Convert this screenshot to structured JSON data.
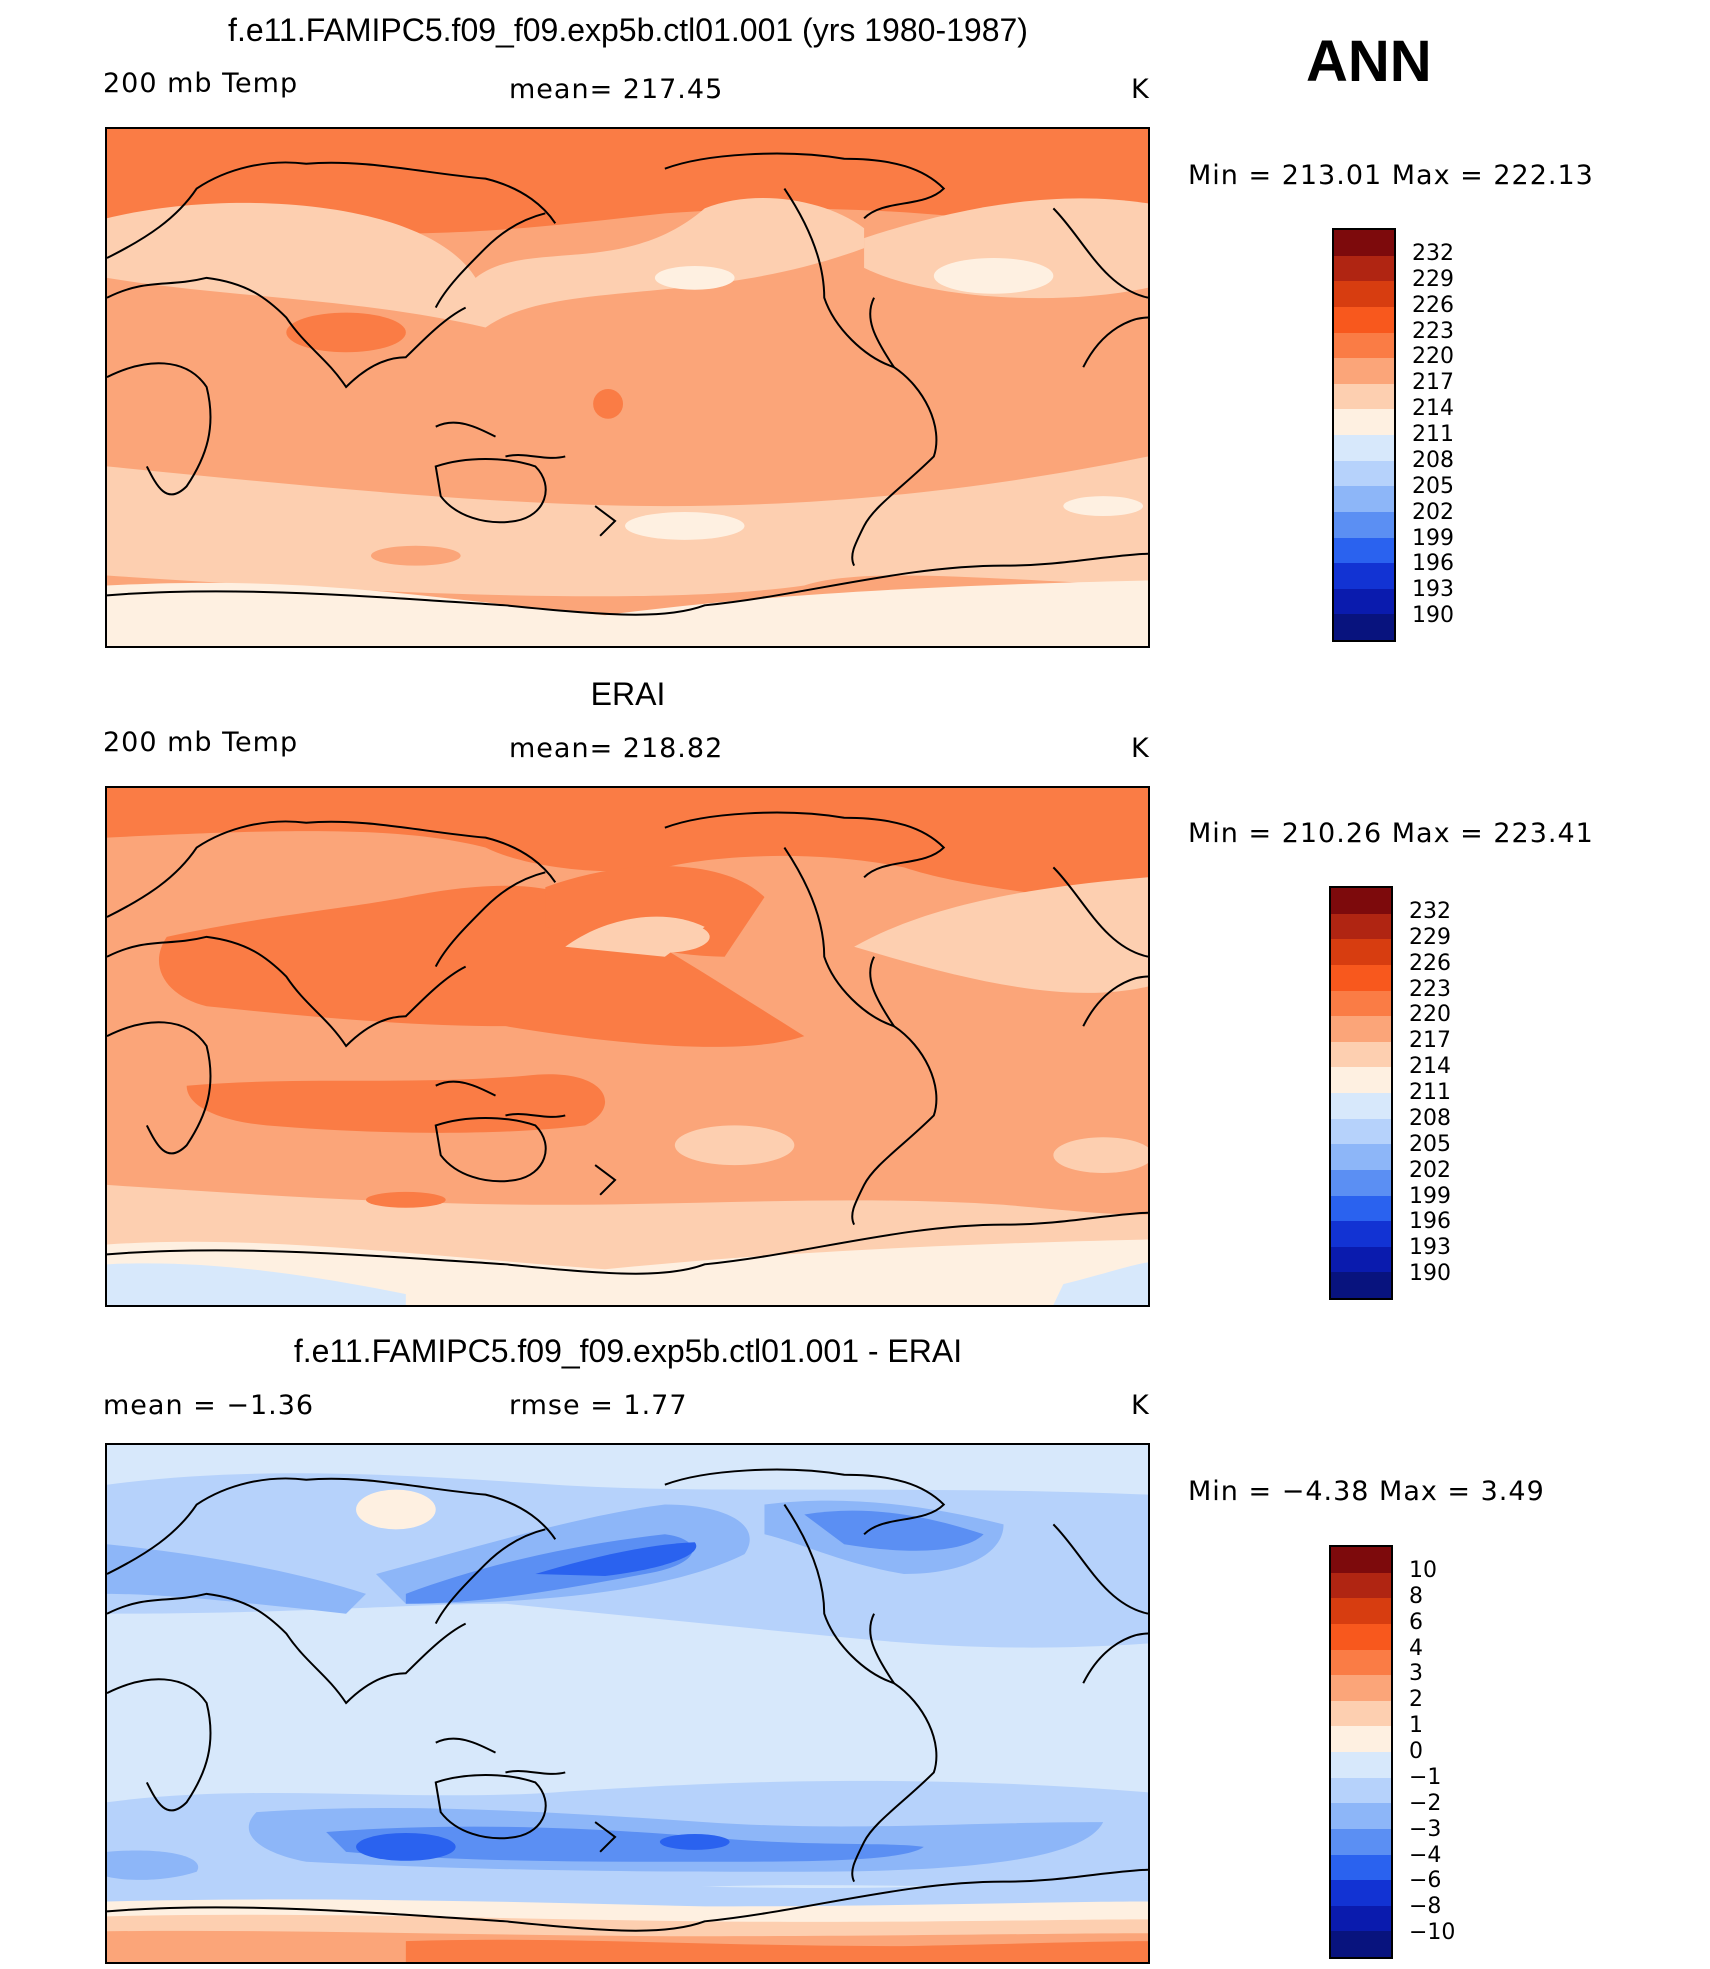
{
  "season": "ANN",
  "panels": [
    {
      "title": "f.e11.FAMIPC5.f09_f09.exp5b.ctl01.001 (yrs 1980-1987)",
      "left_label": "200 mb Temp",
      "center_label": "mean=  217.45",
      "units": "K",
      "minmax": "Min  =  213.01  Max  =  222.13",
      "colorbar": {
        "labels": [
          "232",
          "229",
          "226",
          "223",
          "220",
          "217",
          "214",
          "211",
          "208",
          "205",
          "202",
          "199",
          "196",
          "193",
          "190"
        ],
        "colors": [
          "#7d0a0c",
          "#b02512",
          "#d73d10",
          "#f8581d",
          "#fa7c45",
          "#fba579",
          "#fdcfb0",
          "#fef0e1",
          "#d7e8fb",
          "#b6d2fb",
          "#8db6f8",
          "#5b8ff3",
          "#2a62ef",
          "#1233d3",
          "#0a1bae",
          "#08137e"
        ]
      }
    },
    {
      "title": "ERAI",
      "left_label": "200 mb Temp",
      "center_label": "mean=  218.82",
      "units": "K",
      "minmax": "Min  =  210.26  Max  =  223.41",
      "colorbar": {
        "labels": [
          "232",
          "229",
          "226",
          "223",
          "220",
          "217",
          "214",
          "211",
          "208",
          "205",
          "202",
          "199",
          "196",
          "193",
          "190"
        ],
        "colors": [
          "#7d0a0c",
          "#b02512",
          "#d73d10",
          "#f8581d",
          "#fa7c45",
          "#fba579",
          "#fdcfb0",
          "#fef0e1",
          "#d7e8fb",
          "#b6d2fb",
          "#8db6f8",
          "#5b8ff3",
          "#2a62ef",
          "#1233d3",
          "#0a1bae",
          "#08137e"
        ]
      }
    },
    {
      "title": "f.e11.FAMIPC5.f09_f09.exp5b.ctl01.001 - ERAI",
      "left_label": "mean  =     −1.36",
      "center_label": "rmse  =     1.77",
      "units": "K",
      "minmax": "Min  =    −4.38  Max  =      3.49",
      "colorbar": {
        "labels": [
          "10",
          "8",
          "6",
          "4",
          "3",
          "2",
          "1",
          "0",
          "−1",
          "−2",
          "−3",
          "−4",
          "−6",
          "−8",
          "−10"
        ],
        "colors": [
          "#7d0a0c",
          "#b02512",
          "#d73d10",
          "#f8581d",
          "#fa7c45",
          "#fba579",
          "#fdcfb0",
          "#fef0e1",
          "#d7e8fb",
          "#b6d2fb",
          "#8db6f8",
          "#5b8ff3",
          "#2a62ef",
          "#1233d3",
          "#0a1bae",
          "#08137e"
        ]
      }
    }
  ]
}
